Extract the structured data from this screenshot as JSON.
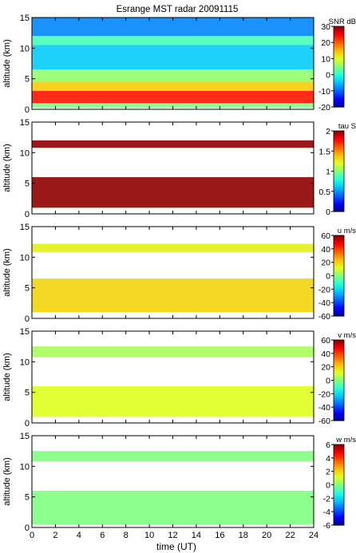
{
  "figure_title": "Esrange MST radar 20091115",
  "xlabel": "time (UT)",
  "x_ticks": [
    "0",
    "2",
    "4",
    "6",
    "8",
    "10",
    "12",
    "14",
    "16",
    "18",
    "20",
    "22",
    "24"
  ],
  "colormap": [
    "#00008f",
    "#0000ff",
    "#0060ff",
    "#00bfff",
    "#20ffdf",
    "#80ff80",
    "#dfff20",
    "#ffbf00",
    "#ff6000",
    "#ff0000",
    "#8f0000"
  ],
  "chart_data": [
    {
      "type": "heatmap",
      "quantity": "SNR",
      "colorbar_label": "SNR dB",
      "colorbar_ticks": [
        "30",
        "20",
        "10",
        "0",
        "-10",
        "-20"
      ],
      "clim": [
        -20,
        30
      ],
      "xlim": [
        0,
        24
      ],
      "ylim": [
        0,
        15
      ],
      "ylabel": "altitude (km)",
      "y_ticks": [
        "15",
        "10",
        "5",
        "0"
      ],
      "x_tick_labels_shown": false,
      "layers": [
        {
          "alt": [
            0.3,
            1.0
          ],
          "value": 5
        },
        {
          "alt": [
            1.0,
            3.0
          ],
          "value": 24
        },
        {
          "alt": [
            3.0,
            4.5
          ],
          "value": 14
        },
        {
          "alt": [
            4.5,
            6.5
          ],
          "value": 6
        },
        {
          "alt": [
            6.5,
            10.5
          ],
          "value": -4
        },
        {
          "alt": [
            10.5,
            12.0
          ],
          "value": 2
        },
        {
          "alt": [
            12.0,
            15.0
          ],
          "value": -8
        }
      ]
    },
    {
      "type": "heatmap",
      "quantity": "tau",
      "colorbar_label": "tau S",
      "colorbar_ticks": [
        "2",
        "1.5",
        "1",
        "0.5",
        "0"
      ],
      "clim": [
        0,
        2
      ],
      "xlim": [
        0,
        24
      ],
      "ylim": [
        0,
        15
      ],
      "ylabel": "altitude (km)",
      "y_ticks": [
        "15",
        "10",
        "5",
        "0"
      ],
      "x_tick_labels_shown": false,
      "layers": [
        {
          "alt": [
            1.0,
            6.0
          ],
          "value": 2
        },
        {
          "alt": [
            10.8,
            12.0
          ],
          "value": 2
        }
      ]
    },
    {
      "type": "heatmap",
      "quantity": "u",
      "colorbar_label": "u m/s",
      "colorbar_ticks": [
        "60",
        "40",
        "20",
        "0",
        "-20",
        "-40",
        "-60"
      ],
      "clim": [
        -60,
        60
      ],
      "xlim": [
        0,
        24
      ],
      "ylim": [
        0,
        15
      ],
      "ylabel": "altitude (km)",
      "y_ticks": [
        "15",
        "10",
        "5",
        "0"
      ],
      "x_tick_labels_shown": false,
      "layers": [
        {
          "alt": [
            1.0,
            6.5
          ],
          "value": 20
        },
        {
          "alt": [
            10.8,
            12.2
          ],
          "value": 15
        }
      ]
    },
    {
      "type": "heatmap",
      "quantity": "v",
      "colorbar_label": "v m/s",
      "colorbar_ticks": [
        "60",
        "40",
        "20",
        "0",
        "-20",
        "-40",
        "-60"
      ],
      "clim": [
        -60,
        60
      ],
      "xlim": [
        0,
        24
      ],
      "ylim": [
        0,
        15
      ],
      "ylabel": "altitude (km)",
      "y_ticks": [
        "15",
        "10",
        "5",
        "0"
      ],
      "x_tick_labels_shown": false,
      "layers": [
        {
          "alt": [
            1.0,
            6.0
          ],
          "value": 12
        },
        {
          "alt": [
            10.8,
            12.5
          ],
          "value": 5
        }
      ]
    },
    {
      "type": "heatmap",
      "quantity": "w",
      "colorbar_label": "w m/s",
      "colorbar_ticks": [
        "6",
        "4",
        "2",
        "0",
        "-2",
        "-4",
        "-6"
      ],
      "clim": [
        -6,
        6
      ],
      "xlim": [
        0,
        24
      ],
      "ylim": [
        0,
        15
      ],
      "ylabel": "altitude (km)",
      "y_ticks": [
        "15",
        "10",
        "5",
        "0"
      ],
      "x_tick_labels_shown": true,
      "layers": [
        {
          "alt": [
            0.5,
            6.0
          ],
          "value": 0
        },
        {
          "alt": [
            10.8,
            12.5
          ],
          "value": 0
        }
      ]
    }
  ]
}
